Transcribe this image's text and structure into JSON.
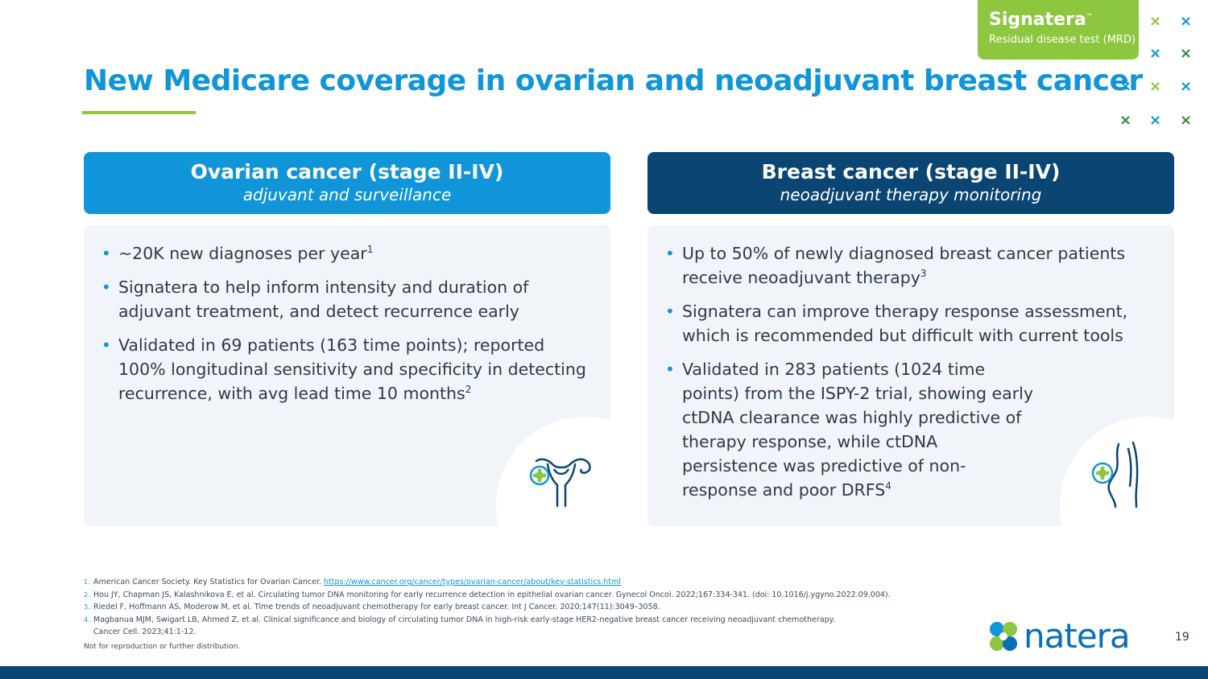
{
  "header": {
    "title": "New Medicare coverage in ovarian and neoadjuvant breast cancer",
    "logo_name": "Signatera",
    "logo_tm": "™",
    "logo_subtitle": "Residual disease test (MRD)"
  },
  "colors": {
    "brand_blue": "#0f95d8",
    "navy": "#0a4573",
    "green": "#8dc63f",
    "card_bg": "#f1f4f8"
  },
  "cards": [
    {
      "title": "Ovarian cancer (stage II-IV)",
      "subtitle": "adjuvant and surveillance",
      "icon": "uterus-icon",
      "bullets": [
        {
          "text": "~20K new diagnoses per year",
          "sup": "1"
        },
        {
          "text": "Signatera to help inform intensity and duration of adjuvant treatment, and detect recurrence early",
          "sup": ""
        },
        {
          "text": "Validated in 69 patients (163 time points); reported 100% longitudinal sensitivity and specificity in detecting recurrence, with avg lead time 10 months",
          "sup": "2"
        }
      ]
    },
    {
      "title": "Breast cancer (stage II-IV)",
      "subtitle": "neoadjuvant therapy monitoring",
      "icon": "breast-icon",
      "bullets": [
        {
          "text": "Up to 50% of newly diagnosed breast cancer patients receive neoadjuvant therapy",
          "sup": "3"
        },
        {
          "text": "Signatera can improve therapy response assessment, which is recommended but difficult with current tools",
          "sup": ""
        },
        {
          "text": "Validated in 283 patients (1024 time points) from the ISPY-2 trial, showing early ctDNA clearance was highly predictive of therapy response, while ctDNA persistence was predictive of non-response and poor DRFS",
          "sup": "4"
        }
      ]
    }
  ],
  "footnotes": [
    {
      "num": "1.",
      "text": "American Cancer Society. Key Statistics for Ovarian Cancer. ",
      "link": "https://www.cancer.org/cancer/types/ovarian-cancer/about/key-statistics.html"
    },
    {
      "num": "2.",
      "text": "Hou JY, Chapman JS, Kalashnikova E, et al. Circulating tumor DNA monitoring for early recurrence detection in epithelial ovarian cancer. Gynecol Oncol. 2022;167:334-341. (doi: 10.1016/j.ygyno.2022.09.004).",
      "link": ""
    },
    {
      "num": "3.",
      "text": "Riedel F, Hoffmann AS, Moderow M, et al. Time trends of neoadjuvant chemotherapy for early breast cancer. Int J Cancer. 2020;147(11):3049–3058.",
      "link": ""
    },
    {
      "num": "4.",
      "text": "Magbanua MJM, Swigart LB, Ahmed Z, et al. Clinical significance and biology of circulating tumor DNA in high-risk early-stage HER2-negative breast cancer receiving neoadjuvant chemotherapy.",
      "link": ""
    },
    {
      "num": "",
      "text": "Cancer Cell. 2023;41:1-12.",
      "link": ""
    }
  ],
  "disclaimer": "Not for reproduction or further distribution.",
  "footer": {
    "company": "natera",
    "page_number": "19"
  }
}
